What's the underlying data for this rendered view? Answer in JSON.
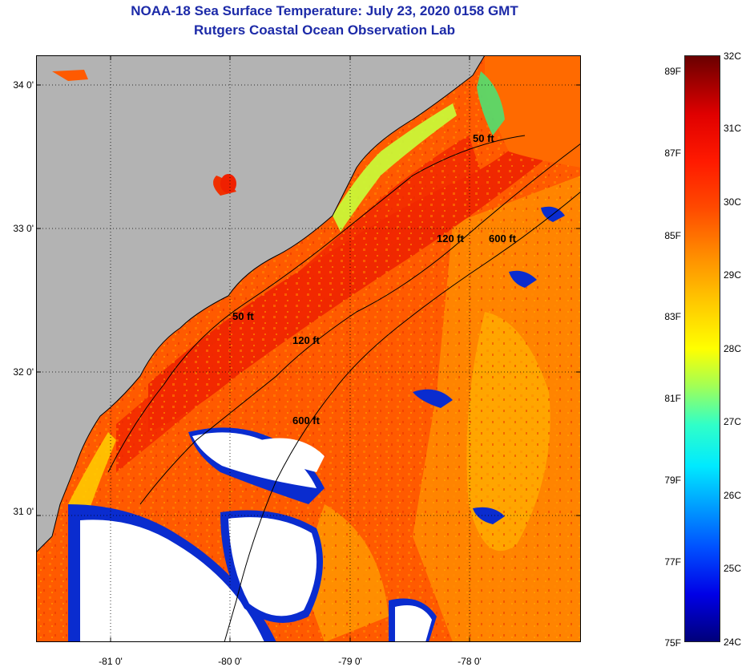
{
  "title_line1": "NOAA-18 Sea Surface Temperature:  July 23, 2020 0158 GMT",
  "title_line2": "Rutgers Coastal Ocean Observation Lab",
  "map": {
    "lat_labels": [
      "34 0'",
      "33 0'",
      "32 0'",
      "31 0'"
    ],
    "lon_labels": [
      "-81 0'",
      "-80 0'",
      "-79 0'",
      "-78 0'"
    ],
    "contour_labels": [
      "50 ft",
      "120 ft",
      "600 ft",
      "50 ft",
      "120 ft",
      "600 ft"
    ],
    "colors": {
      "land": "#b3b3b3",
      "ocean_base": "#ff5a00",
      "warm_band": "#ee2200",
      "nearshore_cool": "#c8ff3a",
      "offshore_warm": "#ffa000",
      "clouds": "#ffffff",
      "cloud_edge": "#0a2ccf"
    }
  },
  "colorbar": {
    "fahrenheit_labels": [
      "89F",
      "87F",
      "85F",
      "83F",
      "81F",
      "79F",
      "77F",
      "75F"
    ],
    "celsius_labels": [
      "32C",
      "31C",
      "30C",
      "29C",
      "28C",
      "27C",
      "26C",
      "25C",
      "24C"
    ],
    "range_celsius": [
      24,
      32
    ],
    "range_fahrenheit": [
      75,
      89
    ]
  }
}
